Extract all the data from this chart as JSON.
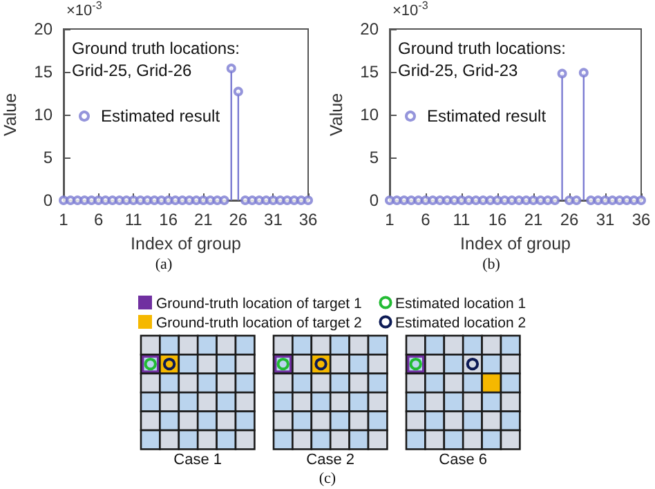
{
  "chart_data": [
    {
      "type": "lollipop",
      "x": [
        1,
        2,
        3,
        4,
        5,
        6,
        7,
        8,
        9,
        10,
        11,
        12,
        13,
        14,
        15,
        16,
        17,
        18,
        19,
        20,
        21,
        22,
        23,
        24,
        25,
        26,
        27,
        28,
        29,
        30,
        31,
        32,
        33,
        34,
        35,
        36
      ],
      "series": [
        {
          "name": "Estimated result",
          "color": "#7b7bd2",
          "values": [
            0,
            0,
            0,
            0,
            0,
            0,
            0,
            0,
            0,
            0,
            0,
            0,
            0,
            0,
            0,
            0,
            0,
            0,
            0,
            0,
            0,
            0,
            0,
            0,
            15.4,
            12.7,
            0,
            0,
            0,
            0,
            0,
            0,
            0,
            0,
            0,
            0
          ]
        }
      ],
      "xlim": [
        1,
        36
      ],
      "xticks": [
        1,
        6,
        11,
        16,
        21,
        26,
        31,
        36
      ],
      "ylim": [
        0,
        20
      ],
      "yticks": [
        0,
        5,
        10,
        15,
        20
      ],
      "xlabel": "Index of group",
      "ylabel": "Value",
      "annotations": [
        "×10$^{-3}$",
        "Ground truth locations:\nGrid-25, Grid-26",
        "(a)"
      ],
      "legend": "left",
      "marker": "circle",
      "grid": false
    },
    {
      "type": "lollipop",
      "x": [
        1,
        2,
        3,
        4,
        5,
        6,
        7,
        8,
        9,
        10,
        11,
        12,
        13,
        14,
        15,
        16,
        17,
        18,
        19,
        20,
        21,
        22,
        23,
        24,
        25,
        26,
        27,
        28,
        29,
        30,
        31,
        32,
        33,
        34,
        35,
        36
      ],
      "series": [
        {
          "name": "Estimated result",
          "color": "#7b7bd2",
          "values": [
            0,
            0,
            0,
            0,
            0,
            0,
            0,
            0,
            0,
            0,
            0,
            0,
            0,
            0,
            0,
            0,
            0,
            0,
            0,
            0,
            0,
            0,
            0,
            0,
            14.8,
            0,
            0,
            14.9,
            0,
            0,
            0,
            0,
            0,
            0,
            0,
            0
          ]
        }
      ],
      "xlim": [
        1,
        36
      ],
      "xticks": [
        1,
        6,
        11,
        16,
        21,
        26,
        31,
        36
      ],
      "ylim": [
        0,
        20
      ],
      "yticks": [
        0,
        5,
        10,
        15,
        20
      ],
      "xlabel": "Index of group",
      "ylabel": "Value",
      "annotations": [
        "×10$^{-3}$",
        "Ground truth locations:\nGrid-25, Grid-23",
        "(b)"
      ],
      "legend": "left",
      "marker": "circle",
      "grid": false
    },
    {
      "type": "other",
      "annotations": [
        "Ground-truth location of target 1",
        "Ground-truth location of target 2",
        "Estimated location 1",
        "Estimated location 2",
        "Case 1",
        "Case 2",
        "Case 6",
        "(c)"
      ]
    }
  ]
}
